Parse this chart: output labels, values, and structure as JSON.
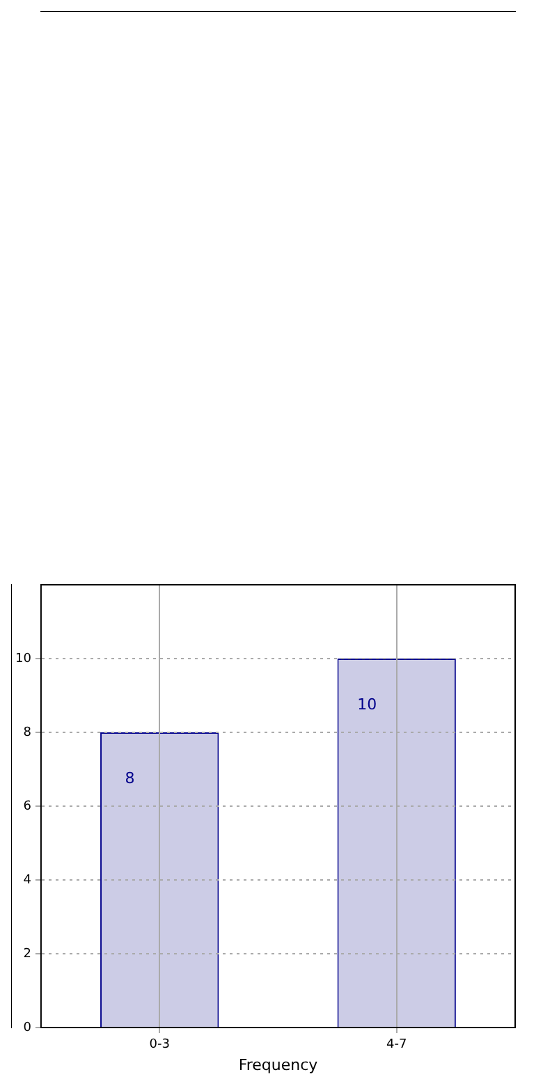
{
  "chart_data": {
    "type": "bar",
    "xlabel": "Frequency",
    "categories": [
      "0-3",
      "4-7"
    ],
    "values": [
      8,
      10
    ],
    "data_labels": true,
    "color": "#cccce6",
    "ylim": [
      0,
      12
    ],
    "yticks": [
      0,
      2,
      4,
      6,
      8,
      10
    ],
    "grid": true
  }
}
